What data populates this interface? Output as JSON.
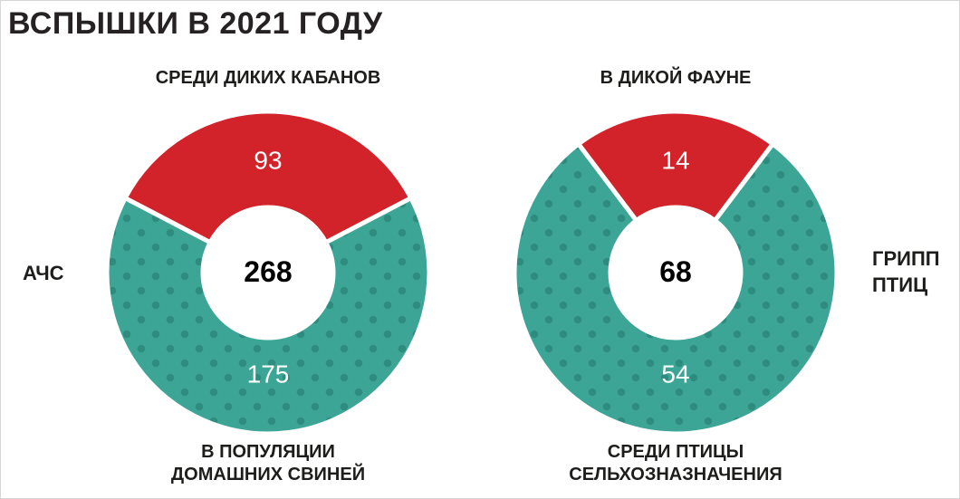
{
  "title": "ВСПЫШКИ В 2021 ГОДУ",
  "colors": {
    "red": "#d2232a",
    "teal": "#3da595",
    "teal_dot": "#2e8c7e",
    "text": "#1d1d1b",
    "value_text": "#ffffff"
  },
  "chart_data": [
    {
      "type": "pie",
      "subtype": "donut",
      "side_label_line1": "АЧС",
      "side_label_line2": "",
      "top_label": "СРЕДИ ДИКИХ КАБАНОВ",
      "bottom_label_line1": "В ПОПУЛЯЦИИ",
      "bottom_label_line2": "ДОМАШНИХ СВИНЕЙ",
      "total": "268",
      "slices": [
        {
          "label": "СРЕДИ ДИКИХ КАБАНОВ",
          "value": 93,
          "color": "#d2232a"
        },
        {
          "label": "В ПОПУЛЯЦИИ ДОМАШНИХ СВИНЕЙ",
          "value": 175,
          "color": "#3da595",
          "pattern": "dots",
          "dot_color": "#2e8c7e"
        }
      ]
    },
    {
      "type": "pie",
      "subtype": "donut",
      "side_label_line1": "ГРИПП",
      "side_label_line2": "ПТИЦ",
      "top_label": "В ДИКОЙ ФАУНЕ",
      "bottom_label_line1": "СРЕДИ ПТИЦЫ",
      "bottom_label_line2": "СЕЛЬХОЗНАЗНАЧЕНИЯ",
      "total": "68",
      "slices": [
        {
          "label": "В ДИКОЙ ФАУНЕ",
          "value": 14,
          "color": "#d2232a"
        },
        {
          "label": "СРЕДИ ПТИЦЫ СЕЛЬХОЗНАЗНАЧЕНИЯ",
          "value": 54,
          "color": "#3da595",
          "pattern": "dots",
          "dot_color": "#2e8c7e"
        }
      ]
    }
  ]
}
